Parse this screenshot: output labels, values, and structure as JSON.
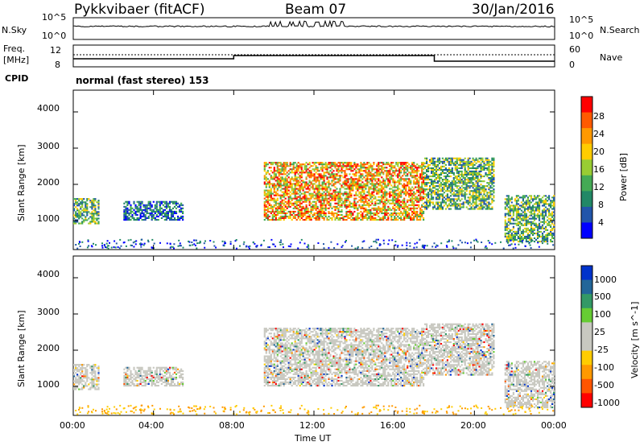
{
  "header": {
    "radar": "Pykkvibaer (fitACF)",
    "beam": "Beam 07",
    "date": "30/Jan/2016"
  },
  "mode_label": "normal (fast stereo) 153",
  "top_panel": {
    "left_label": "N.Sky",
    "left_ticks": [
      "10^5",
      "10^0"
    ],
    "right_label": "N.Search",
    "right_ticks": [
      "10^5",
      "10^0"
    ]
  },
  "freq_panel": {
    "left_label_1": "Freq.",
    "left_label_2": "[MHz]",
    "left_ticks": [
      "12",
      "8"
    ],
    "right_label": "Nave",
    "right_ticks": [
      "60",
      "0"
    ],
    "cpid_label": "CPID"
  },
  "chart_data": [
    {
      "type": "heatmap",
      "title": "",
      "xlabel": "",
      "ylabel": "Slant Range [km]",
      "yticks": [
        "4000",
        "3000",
        "2000",
        "1000"
      ],
      "ylim": [
        200,
        4600
      ],
      "xlim": [
        0,
        24
      ],
      "colorbar": {
        "label": "Power [dB]",
        "ticks": [
          "28",
          "24",
          "20",
          "16",
          "12",
          "8",
          "4"
        ],
        "colors": [
          "#ff0000",
          "#ff5a00",
          "#ff9900",
          "#ffcc00",
          "#99cc33",
          "#44aa55",
          "#228866",
          "#2255aa",
          "#0000ff"
        ]
      },
      "regions_description_hours_km": [
        {
          "t0": 0.0,
          "t1": 1.3,
          "r0": 900,
          "r1": 1600,
          "level": "medium"
        },
        {
          "t0": 2.5,
          "t1": 5.5,
          "r0": 1000,
          "r1": 1500,
          "level": "low"
        },
        {
          "t0": 9.5,
          "t1": 17.5,
          "r0": 1000,
          "r1": 2600,
          "level": "high"
        },
        {
          "t0": 17.5,
          "t1": 21.0,
          "r0": 1300,
          "r1": 2700,
          "level": "medium"
        },
        {
          "t0": 21.5,
          "t1": 24.0,
          "r0": 400,
          "r1": 1700,
          "level": "medium"
        }
      ]
    },
    {
      "type": "heatmap",
      "title": "",
      "xlabel": "Time UT",
      "ylabel": "Slant Range [km]",
      "yticks": [
        "4000",
        "3000",
        "2000",
        "1000"
      ],
      "ylim": [
        200,
        4600
      ],
      "xlim": [
        0,
        24
      ],
      "xticks": [
        "00:00",
        "04:00",
        "08:00",
        "12:00",
        "16:00",
        "20:00",
        "00:00"
      ],
      "colorbar": {
        "label": "Velocity [m s^-1]",
        "ticks": [
          "1000",
          "500",
          "100",
          "25",
          "-25",
          "-100",
          "-500",
          "-1000"
        ],
        "colors": [
          "#0033cc",
          "#226699",
          "#339966",
          "#66cc33",
          "#c8c8c0",
          "#c8c8c0",
          "#ffcc00",
          "#ff9900",
          "#ff5500",
          "#ff0000"
        ]
      }
    }
  ]
}
